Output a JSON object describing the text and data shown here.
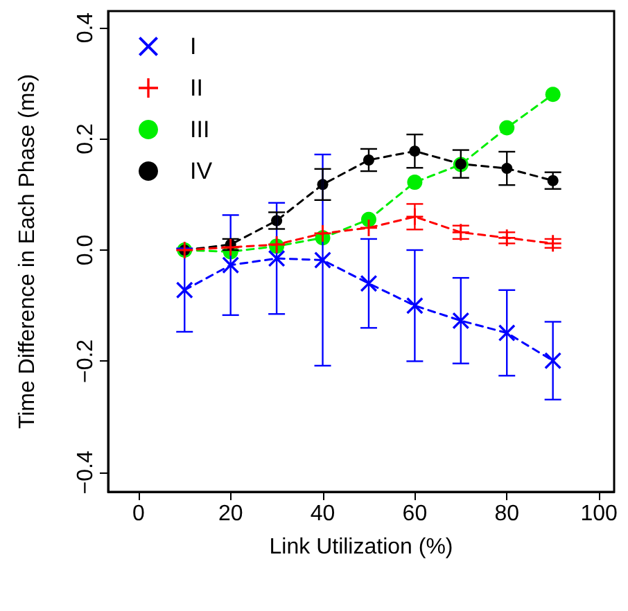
{
  "chart_data": {
    "type": "line",
    "xlabel": "Link Utilization (%)",
    "ylabel": "Time Difference in Each Phase (ms)",
    "x": [
      10,
      20,
      30,
      40,
      50,
      60,
      70,
      80,
      90
    ],
    "series": [
      {
        "name": "I",
        "color": "#0000ff",
        "marker": "cross",
        "values": [
          -0.072,
          -0.027,
          -0.015,
          -0.018,
          -0.06,
          -0.1,
          -0.127,
          -0.149,
          -0.199
        ],
        "errors": [
          0.075,
          0.09,
          0.1,
          0.19,
          0.08,
          0.1,
          0.077,
          0.077,
          0.07
        ]
      },
      {
        "name": "II",
        "color": "#ff0000",
        "marker": "plus",
        "values": [
          0,
          0.005,
          0.01,
          0.03,
          0.04,
          0.06,
          0.032,
          0.022,
          0.012
        ],
        "errors": [
          null,
          null,
          null,
          null,
          null,
          0.023,
          0.012,
          0.01,
          0.008
        ]
      },
      {
        "name": "III",
        "color": "#00ee00",
        "marker": "circle",
        "values": [
          0,
          -0.003,
          0.007,
          0.022,
          0.055,
          0.122,
          0.154,
          0.22,
          0.28
        ]
      },
      {
        "name": "IV",
        "color": "#000000",
        "marker": "circle",
        "values": [
          0,
          0.01,
          0.053,
          0.118,
          0.162,
          0.178,
          0.155,
          0.147,
          0.125
        ],
        "errors": [
          null,
          0.01,
          0.015,
          0.028,
          0.02,
          0.03,
          0.025,
          0.03,
          0.015
        ]
      }
    ],
    "xlim": [
      -6.6,
      103.3
    ],
    "xticks": [
      0,
      20,
      40,
      60,
      80,
      100
    ],
    "ylim": [
      -0.435,
      0.43
    ],
    "yticks": [
      {
        "value": -0.4,
        "label": "−0.4"
      },
      {
        "value": -0.2,
        "label": "−0.2"
      },
      {
        "value": 0,
        "label": "0.0"
      },
      {
        "value": 0.2,
        "label": "0.2"
      },
      {
        "value": 0.4,
        "label": "0.4"
      }
    ],
    "grid": false,
    "legend": "top left",
    "line_style": "dashed"
  }
}
